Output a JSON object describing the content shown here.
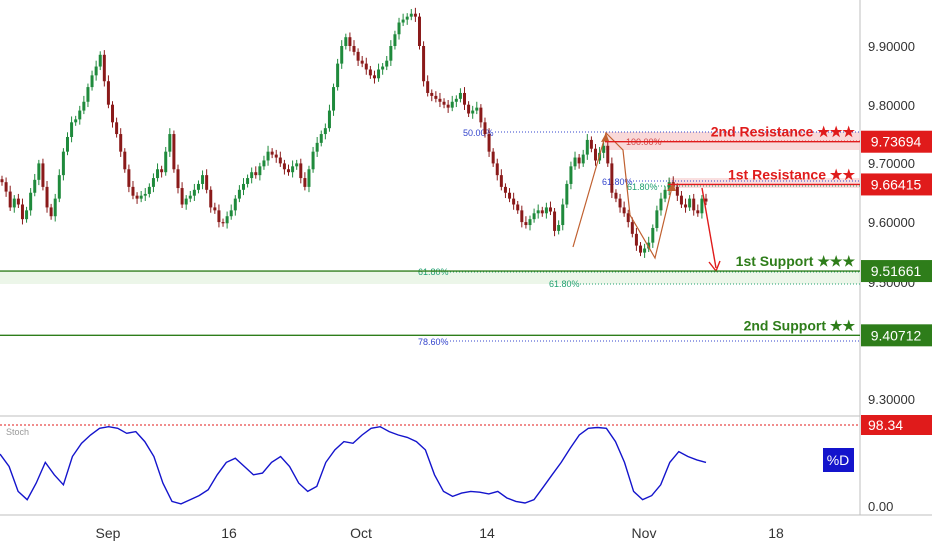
{
  "chart_data": [
    {
      "type": "candlestick",
      "x_ticks": [
        "Sep",
        "16",
        "Oct",
        "14",
        "Nov",
        "18"
      ],
      "y_ticks": [
        "9.90000",
        "9.80000",
        "9.70000",
        "9.60000",
        "9.50000",
        "9.30000"
      ],
      "ylim": [
        9.27,
        9.975
      ],
      "grid": false,
      "ohlc_close_approx": [
        9.668,
        9.652,
        9.625,
        9.64,
        9.63,
        9.605,
        9.62,
        9.65,
        9.672,
        9.7,
        9.66,
        9.625,
        9.61,
        9.64,
        9.68,
        9.72,
        9.745,
        9.77,
        9.775,
        9.79,
        9.805,
        9.83,
        9.85,
        9.865,
        9.885,
        9.84,
        9.8,
        9.77,
        9.75,
        9.72,
        9.69,
        9.66,
        9.645,
        9.64,
        9.645,
        9.648,
        9.66,
        9.675,
        9.69,
        9.685,
        9.72,
        9.75,
        9.69,
        9.658,
        9.63,
        9.64,
        9.645,
        9.655,
        9.665,
        9.68,
        9.655,
        9.625,
        9.62,
        9.6,
        9.598,
        9.61,
        9.62,
        9.64,
        9.655,
        9.665,
        9.675,
        9.685,
        9.68,
        9.695,
        9.705,
        9.72,
        9.715,
        9.71,
        9.7,
        9.69,
        9.685,
        9.695,
        9.7,
        9.675,
        9.66,
        9.69,
        9.72,
        9.735,
        9.75,
        9.76,
        9.79,
        9.83,
        9.87,
        9.9,
        9.915,
        9.9,
        9.89,
        9.875,
        9.87,
        9.86,
        9.85,
        9.845,
        9.86,
        9.865,
        9.875,
        9.9,
        9.92,
        9.94,
        9.945,
        9.95,
        9.955,
        9.95,
        9.9,
        9.84,
        9.82,
        9.815,
        9.81,
        9.805,
        9.8,
        9.795,
        9.805,
        9.81,
        9.82,
        9.8,
        9.785,
        9.79,
        9.795,
        9.77,
        9.75,
        9.72,
        9.7,
        9.68,
        9.66,
        9.65,
        9.64,
        9.63,
        9.62,
        9.6,
        9.595,
        9.605,
        9.615,
        9.62,
        9.615,
        9.625,
        9.618,
        9.585,
        9.595,
        9.63,
        9.665,
        9.695,
        9.71,
        9.7,
        9.715,
        9.74,
        9.725,
        9.705,
        9.718,
        9.73,
        9.7,
        9.65,
        9.64,
        9.625,
        9.615,
        9.6,
        9.58,
        9.56,
        9.548,
        9.555,
        9.565,
        9.59,
        9.62,
        9.64,
        9.655,
        9.668,
        9.66,
        9.645,
        9.63,
        9.625,
        9.64,
        9.62,
        9.615,
        9.64,
        9.635
      ]
    },
    {
      "type": "line",
      "title": "Stoch",
      "y_ticks": [
        "0.00"
      ],
      "series": [
        {
          "name": "%D",
          "values": [
            65,
            50,
            20,
            10,
            30,
            55,
            40,
            28,
            62,
            78,
            88,
            96,
            98,
            96,
            90,
            92,
            80,
            62,
            30,
            8,
            5,
            10,
            15,
            22,
            40,
            55,
            60,
            50,
            40,
            42,
            55,
            62,
            50,
            30,
            20,
            26,
            55,
            70,
            80,
            78,
            88,
            96,
            98,
            92,
            88,
            85,
            80,
            70,
            40,
            20,
            14,
            18,
            20,
            19,
            17,
            20,
            12,
            8,
            6,
            10,
            25,
            40,
            55,
            72,
            88,
            96,
            97,
            96,
            80,
            55,
            20,
            10,
            15,
            28,
            55,
            68,
            62,
            58,
            55
          ],
          "color": "#1414cc"
        }
      ],
      "ylim": [
        0,
        100
      ]
    }
  ],
  "fib_labels": [
    "50.00%",
    "100.00%",
    "61.80%",
    "61.80%",
    "61.80%",
    "61.80%",
    "78.60%"
  ],
  "levels": [
    {
      "label": "2nd Resistance ★★★",
      "price": "9.73694",
      "value": 9.73694,
      "color": "#e01b1b"
    },
    {
      "label": "1st Resistance ★★",
      "price": "9.66415",
      "value": 9.66415,
      "color": "#e01b1b"
    },
    {
      "label": "1st Support ★★★",
      "price": "9.51661",
      "value": 9.51661,
      "color": "#2e7d1a"
    },
    {
      "label": "2nd Support ★★",
      "price": "9.40712",
      "value": 9.40712,
      "color": "#2e7d1a"
    }
  ],
  "stoch": {
    "label": "Stoch",
    "level_label": "98.34",
    "series_badge": "%D",
    "zero_label": "0.00"
  },
  "colors": {
    "up": "#1f8a3c",
    "down": "#8a1a1a",
    "resistance": "#e01b1b",
    "support": "#2e7d1a",
    "fib": "#3344cc",
    "stoch": "#1414cc",
    "arrow_up": "#c06030",
    "arrow_down": "#e01b1b"
  }
}
